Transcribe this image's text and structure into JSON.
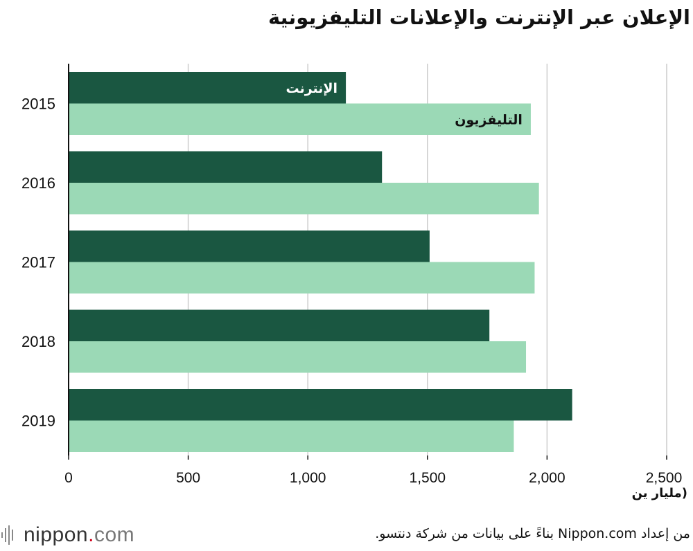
{
  "header": {
    "title": "الإعلان عبر الإنترنت والإعلانات التليفزيونية"
  },
  "axis": {
    "unit_label": "(مليار ين"
  },
  "footer": {
    "brand_name": "nippon",
    "brand_dot": ".",
    "brand_com": "com",
    "source": "من إعداد Nippon.com بناءً على بيانات من شركة دنتسو."
  },
  "colors": {
    "internet": "#1a5741",
    "tv": "#9bd9b6",
    "grid": "#cccccc",
    "axis": "#111111",
    "brand_accent": "#d0021b"
  },
  "chart_data": {
    "type": "bar",
    "orientation": "horizontal",
    "title": "الإعلان عبر الإنترنت والإعلانات التليفزيونية",
    "xlabel": "(مليار ين",
    "ylabel": "",
    "categories": [
      "2015",
      "2016",
      "2017",
      "2018",
      "2019"
    ],
    "series": [
      {
        "name": "الإنترنت",
        "values": [
          1159,
          1310,
          1509,
          1759,
          2105
        ]
      },
      {
        "name": "التليفزيون",
        "values": [
          1932,
          1966,
          1948,
          1912,
          1861
        ]
      }
    ],
    "xlim": [
      0,
      2500
    ],
    "xticks": [
      "0",
      "500",
      "1,000",
      "1,500",
      "2,000",
      "2,500"
    ],
    "grid": true,
    "legend": "inline labels on first group"
  }
}
